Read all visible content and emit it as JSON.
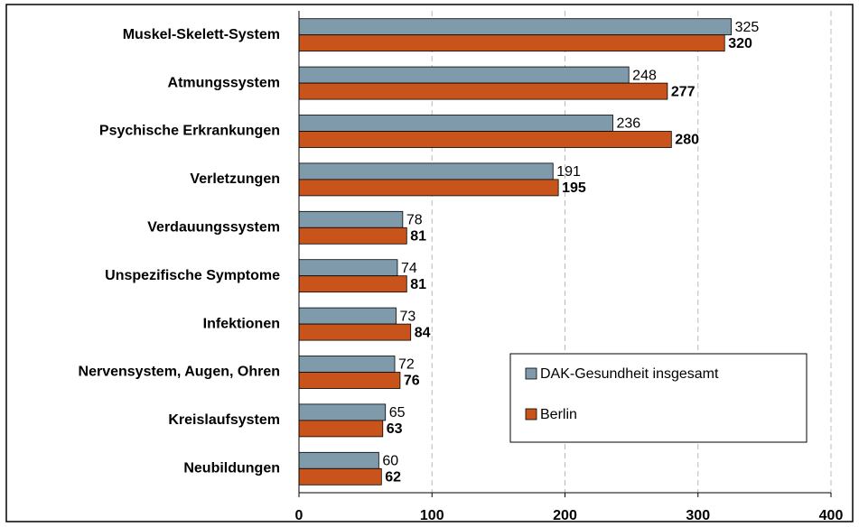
{
  "chart_data": {
    "type": "bar",
    "orientation": "horizontal",
    "categories": [
      "Muskel-Skelett-System",
      "Atmungssystem",
      "Psychische Erkrankungen",
      "Verletzungen",
      "Verdauungssystem",
      "Unspezifische Symptome",
      "Infektionen",
      "Nervensystem, Augen, Ohren",
      "Kreislaufsystem",
      "Neubildungen"
    ],
    "series": [
      {
        "name": "DAK-Gesundheit insgesamt",
        "color": "#7f9aaa",
        "values": [
          325,
          248,
          236,
          191,
          78,
          74,
          73,
          72,
          65,
          60
        ]
      },
      {
        "name": "Berlin",
        "color": "#c9541b",
        "values": [
          320,
          277,
          280,
          195,
          81,
          81,
          84,
          76,
          63,
          62
        ]
      }
    ],
    "xlim": [
      0,
      400
    ],
    "xticks": [
      0,
      100,
      200,
      300,
      400
    ],
    "grid": true,
    "legend": "lower right"
  }
}
